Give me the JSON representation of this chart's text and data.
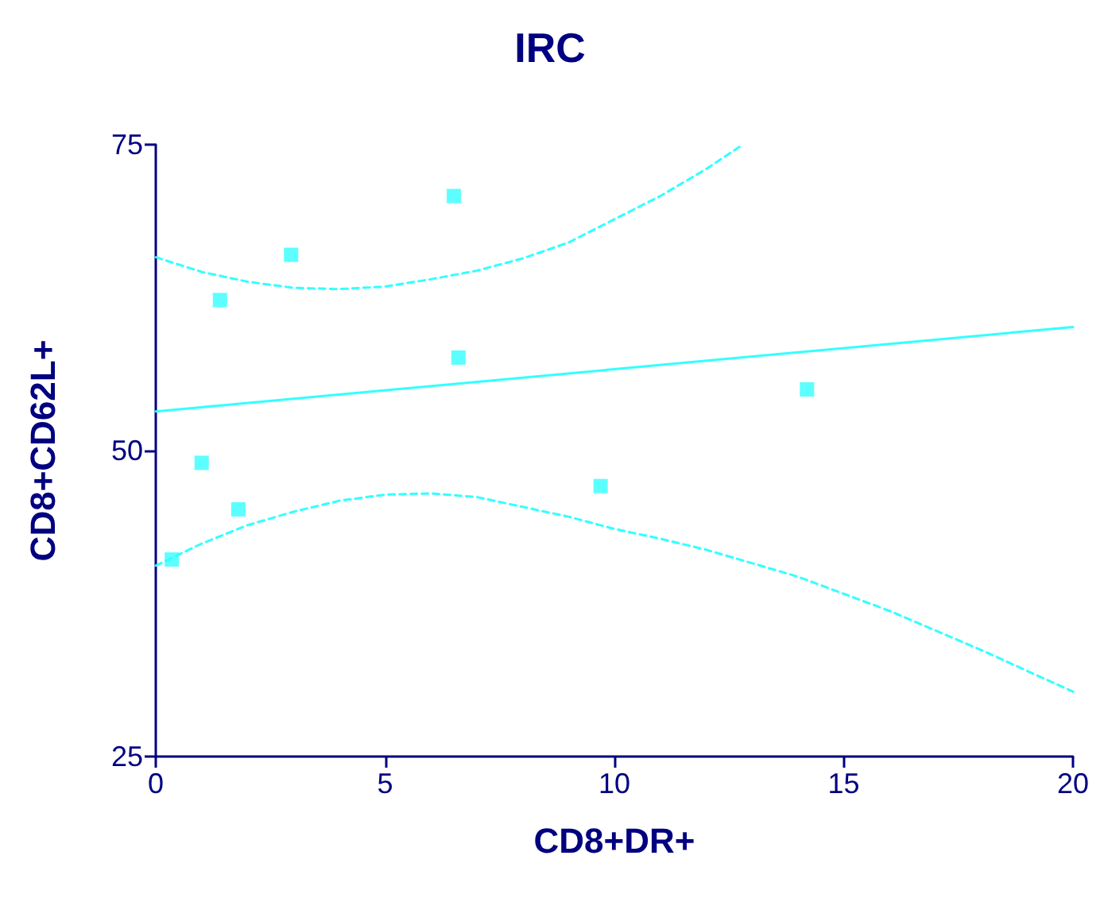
{
  "chart_data": {
    "type": "scatter",
    "title": "IRC",
    "xlabel": "CD8+DR+",
    "ylabel": "CD8+CD62L+",
    "xlim": [
      0,
      20
    ],
    "xticks": [
      0,
      5,
      10,
      15,
      20
    ],
    "ylim": [
      25,
      75
    ],
    "yticks": [
      25,
      50,
      75
    ],
    "grid": false,
    "marker": "square",
    "series": [
      {
        "color": "#33ffff",
        "x": [
          0.35,
          1.0,
          1.4,
          1.8,
          2.95,
          6.5,
          6.6,
          9.7,
          14.2
        ],
        "values": [
          41.1,
          49.0,
          62.3,
          45.2,
          66.0,
          70.8,
          57.6,
          47.1,
          55.0
        ]
      },
      {
        "type": "line",
        "marker": "none",
        "line_style": "solid",
        "color": "#33ffff",
        "x": [
          0,
          20
        ],
        "values": [
          53.2,
          60.1
        ]
      },
      {
        "type": "line",
        "marker": "none",
        "line_style": "dashed",
        "color": "#33ffff",
        "x": [
          0,
          1,
          2,
          3,
          4,
          5,
          6,
          7,
          8,
          9,
          10,
          11,
          12,
          12.8
        ],
        "values": [
          65.8,
          64.6,
          63.8,
          63.3,
          63.2,
          63.4,
          64.0,
          64.7,
          65.7,
          67.0,
          68.9,
          70.8,
          73.0,
          75
        ]
      },
      {
        "type": "line",
        "marker": "none",
        "line_style": "dashed",
        "color": "#33ffff",
        "x": [
          0,
          1,
          2,
          3,
          4,
          5,
          6,
          7,
          8,
          9,
          10,
          11,
          12,
          14,
          16,
          18,
          20
        ],
        "values": [
          40.6,
          42.4,
          43.9,
          45.0,
          45.9,
          46.4,
          46.5,
          46.2,
          45.4,
          44.6,
          43.6,
          42.8,
          41.9,
          39.7,
          36.9,
          33.7,
          30.3
        ]
      }
    ]
  }
}
